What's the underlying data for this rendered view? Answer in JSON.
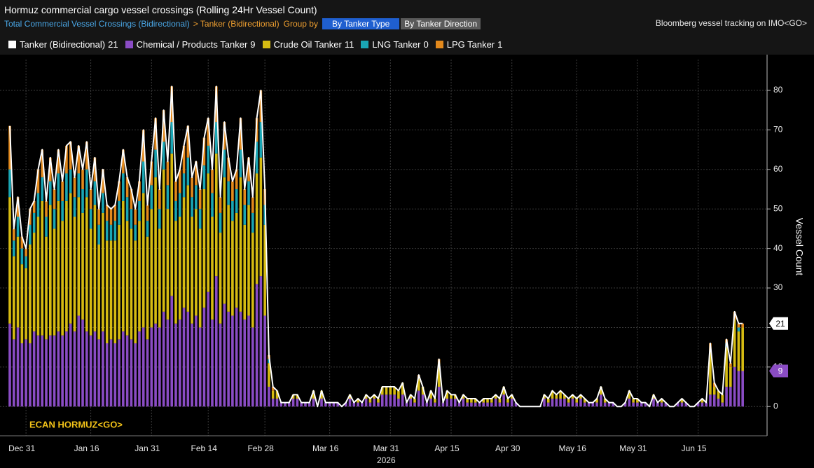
{
  "header": {
    "title": "Hormuz commercial cargo vessel crossings (Rolling 24Hr Vessel Count)",
    "breadcrumb": [
      "Total Commercial Vessel Crossings (Bidirectional)",
      "> Tanker (Bidirectional)"
    ],
    "group_by": "Group by",
    "buttons": [
      "By Tanker Type",
      "By Tanker Direction"
    ],
    "source": "Bloomberg vessel tracking on IMO<GO>"
  },
  "chart_data": {
    "type": "bar",
    "stacked": true,
    "annotation": "ECAN HORMUZ<GO>",
    "ylabel": "Vessel Count",
    "x_year": "2026",
    "ylim": [
      -7.4,
      87.8
    ],
    "yticks": [
      0,
      10,
      20,
      30,
      40,
      50,
      60,
      70,
      80
    ],
    "grid": true,
    "categories": [
      null,
      null,
      null,
      null,
      "Dec 31",
      null,
      null,
      null,
      null,
      null,
      null,
      null,
      null,
      null,
      null,
      null,
      null,
      null,
      null,
      null,
      "Jan 16",
      null,
      null,
      null,
      null,
      null,
      null,
      null,
      null,
      null,
      null,
      null,
      null,
      null,
      null,
      "Jan 31",
      null,
      null,
      null,
      null,
      null,
      null,
      null,
      null,
      null,
      null,
      null,
      null,
      null,
      "Feb 14",
      null,
      null,
      null,
      null,
      null,
      null,
      null,
      null,
      null,
      null,
      null,
      null,
      null,
      "Feb 28",
      null,
      null,
      null,
      null,
      null,
      null,
      null,
      null,
      null,
      null,
      null,
      null,
      null,
      null,
      null,
      "Mar 16",
      null,
      null,
      null,
      null,
      null,
      null,
      null,
      null,
      null,
      null,
      null,
      null,
      null,
      null,
      "Mar 31",
      null,
      null,
      null,
      null,
      null,
      null,
      null,
      null,
      null,
      null,
      null,
      null,
      null,
      null,
      "Apr 15",
      null,
      null,
      null,
      null,
      null,
      null,
      null,
      null,
      null,
      null,
      null,
      null,
      null,
      null,
      "Apr 30",
      null,
      null,
      null,
      null,
      null,
      null,
      null,
      null,
      null,
      null,
      null,
      null,
      null,
      null,
      null,
      "May 16",
      null,
      null,
      null,
      null,
      null,
      null,
      null,
      null,
      null,
      null,
      null,
      null,
      null,
      null,
      "May 31",
      null,
      null,
      null,
      null,
      null,
      null,
      null,
      null,
      null,
      null,
      null,
      null,
      null,
      null,
      "Jun 15",
      null,
      null,
      null,
      null,
      null,
      null,
      null,
      null,
      null,
      null,
      null
    ],
    "series": [
      {
        "name": "Tanker (Bidirectional)",
        "type": "line",
        "color": "#ffffff",
        "values": [
          71,
          45,
          53,
          43,
          40,
          50,
          52,
          60,
          65,
          52,
          63,
          55,
          65,
          57,
          66,
          67,
          58,
          66,
          60,
          67,
          55,
          63,
          50,
          60,
          51,
          50,
          51,
          57,
          65,
          58,
          55,
          50,
          57,
          70,
          51,
          62,
          73,
          55,
          75,
          62,
          81,
          57,
          60,
          66,
          71,
          58,
          62,
          55,
          68,
          73,
          60,
          81,
          53,
          72,
          63,
          57,
          60,
          73,
          55,
          63,
          53,
          73,
          80,
          55,
          13,
          5,
          4,
          1,
          1,
          1,
          3,
          3,
          1,
          1,
          1,
          4,
          0,
          4,
          1,
          1,
          1,
          1,
          0,
          1,
          3,
          1,
          2,
          1,
          3,
          2,
          3,
          2,
          5,
          5,
          5,
          5,
          4,
          6,
          1,
          3,
          2,
          8,
          5,
          1,
          4,
          2,
          12,
          1,
          4,
          3,
          3,
          1,
          3,
          2,
          2,
          2,
          1,
          2,
          2,
          2,
          3,
          2,
          5,
          2,
          3,
          1,
          0,
          0,
          0,
          0,
          0,
          0,
          3,
          2,
          4,
          3,
          4,
          3,
          2,
          3,
          2,
          3,
          2,
          1,
          1,
          2,
          5,
          2,
          1,
          1,
          0,
          0,
          1,
          4,
          2,
          2,
          1,
          1,
          0,
          3,
          1,
          2,
          1,
          0,
          0,
          1,
          2,
          1,
          0,
          0,
          1,
          2,
          1,
          16,
          6,
          4,
          3,
          17,
          11,
          24,
          21,
          21
        ]
      },
      {
        "name": "Chemical / Products Tanker",
        "color": "#8a4cc4",
        "values": [
          21,
          17,
          20,
          16,
          17,
          16,
          19,
          18,
          18,
          17,
          18,
          18,
          19,
          18,
          19,
          21,
          19,
          23,
          22,
          19,
          18,
          19,
          17,
          19,
          16,
          17,
          16,
          17,
          19,
          18,
          17,
          16,
          19,
          20,
          17,
          20,
          21,
          20,
          24,
          22,
          28,
          21,
          22,
          25,
          24,
          21,
          23,
          20,
          25,
          29,
          22,
          33,
          21,
          26,
          24,
          23,
          25,
          24,
          22,
          23,
          20,
          31,
          33,
          23,
          5,
          2,
          2,
          1,
          1,
          1,
          2,
          2,
          1,
          1,
          1,
          2,
          0,
          2,
          1,
          1,
          1,
          1,
          0,
          1,
          2,
          1,
          1,
          1,
          2,
          1,
          2,
          1,
          3,
          3,
          3,
          3,
          2,
          3,
          1,
          2,
          1,
          4,
          3,
          1,
          2,
          1,
          5,
          1,
          2,
          2,
          2,
          1,
          2,
          1,
          1,
          1,
          1,
          1,
          1,
          1,
          2,
          1,
          3,
          1,
          2,
          1,
          0,
          0,
          0,
          0,
          0,
          0,
          2,
          1,
          2,
          2,
          2,
          2,
          1,
          2,
          1,
          2,
          1,
          1,
          1,
          1,
          3,
          1,
          1,
          1,
          0,
          0,
          1,
          2,
          1,
          1,
          1,
          1,
          0,
          2,
          1,
          1,
          1,
          0,
          0,
          1,
          1,
          1,
          0,
          0,
          1,
          1,
          1,
          3,
          3,
          2,
          1,
          5,
          5,
          10,
          9,
          9
        ]
      },
      {
        "name": "Crude Oil Tanker",
        "color": "#d6bb12",
        "values": [
          32,
          21,
          23,
          20,
          18,
          25,
          25,
          30,
          34,
          26,
          33,
          27,
          33,
          29,
          33,
          33,
          29,
          30,
          27,
          34,
          27,
          32,
          24,
          30,
          26,
          25,
          26,
          29,
          33,
          29,
          28,
          26,
          28,
          34,
          26,
          30,
          37,
          25,
          36,
          28,
          36,
          26,
          26,
          28,
          32,
          27,
          27,
          25,
          30,
          30,
          26,
          31,
          23,
          32,
          27,
          24,
          24,
          34,
          24,
          28,
          24,
          28,
          30,
          23,
          6,
          2,
          2,
          0,
          0,
          0,
          1,
          1,
          0,
          0,
          0,
          2,
          0,
          2,
          0,
          0,
          0,
          0,
          0,
          0,
          1,
          0,
          1,
          0,
          1,
          1,
          1,
          1,
          2,
          2,
          2,
          2,
          2,
          3,
          0,
          1,
          1,
          3,
          2,
          0,
          2,
          1,
          6,
          0,
          2,
          1,
          1,
          0,
          1,
          1,
          1,
          1,
          0,
          1,
          1,
          1,
          1,
          1,
          2,
          1,
          1,
          0,
          0,
          0,
          0,
          0,
          0,
          0,
          1,
          1,
          2,
          1,
          2,
          1,
          1,
          1,
          1,
          1,
          1,
          0,
          0,
          1,
          2,
          1,
          0,
          0,
          0,
          0,
          0,
          2,
          1,
          1,
          0,
          0,
          0,
          1,
          0,
          1,
          0,
          0,
          0,
          0,
          1,
          0,
          0,
          0,
          0,
          1,
          0,
          11,
          2,
          2,
          2,
          10,
          5,
          12,
          10,
          11
        ]
      },
      {
        "name": "LNG Tanker",
        "color": "#1aa6b4",
        "values": [
          7,
          4,
          5,
          4,
          3,
          5,
          5,
          6,
          6,
          5,
          6,
          5,
          7,
          5,
          7,
          6,
          5,
          6,
          6,
          7,
          5,
          6,
          5,
          5,
          5,
          4,
          5,
          6,
          7,
          6,
          5,
          4,
          5,
          8,
          4,
          6,
          7,
          5,
          7,
          6,
          8,
          5,
          6,
          6,
          7,
          5,
          6,
          5,
          6,
          7,
          6,
          8,
          5,
          7,
          6,
          5,
          6,
          7,
          5,
          6,
          5,
          8,
          9,
          5,
          1,
          0,
          0,
          0,
          0,
          0,
          0,
          0,
          0,
          0,
          0,
          0,
          0,
          0,
          0,
          0,
          0,
          0,
          0,
          0,
          0,
          0,
          0,
          0,
          0,
          0,
          0,
          0,
          0,
          0,
          0,
          0,
          0,
          0,
          0,
          0,
          0,
          0,
          0,
          0,
          0,
          0,
          0,
          0,
          0,
          0,
          0,
          0,
          0,
          0,
          0,
          0,
          0,
          0,
          0,
          0,
          0,
          0,
          0,
          0,
          0,
          0,
          0,
          0,
          0,
          0,
          0,
          0,
          0,
          0,
          0,
          0,
          0,
          0,
          0,
          0,
          0,
          0,
          0,
          0,
          0,
          0,
          0,
          0,
          0,
          0,
          0,
          0,
          0,
          0,
          0,
          0,
          0,
          0,
          0,
          0,
          0,
          0,
          0,
          0,
          0,
          0,
          0,
          0,
          0,
          0,
          0,
          0,
          0,
          0,
          0,
          0,
          0,
          1,
          0,
          0,
          1,
          0
        ]
      },
      {
        "name": "LPG Tanker",
        "color": "#e3891c",
        "values": [
          11,
          3,
          5,
          3,
          2,
          4,
          3,
          6,
          7,
          4,
          6,
          5,
          6,
          5,
          7,
          7,
          5,
          7,
          5,
          7,
          5,
          6,
          4,
          6,
          4,
          4,
          4,
          5,
          6,
          5,
          5,
          4,
          5,
          8,
          4,
          6,
          8,
          5,
          8,
          6,
          9,
          5,
          6,
          7,
          8,
          5,
          6,
          5,
          7,
          7,
          6,
          9,
          4,
          7,
          6,
          5,
          5,
          8,
          4,
          6,
          4,
          6,
          8,
          4,
          1,
          1,
          0,
          0,
          0,
          0,
          0,
          0,
          0,
          0,
          0,
          0,
          0,
          0,
          0,
          0,
          0,
          0,
          0,
          0,
          0,
          0,
          0,
          0,
          0,
          0,
          0,
          0,
          0,
          0,
          0,
          0,
          0,
          0,
          0,
          0,
          0,
          1,
          0,
          0,
          0,
          0,
          1,
          0,
          0,
          0,
          0,
          0,
          0,
          0,
          0,
          0,
          0,
          0,
          0,
          0,
          0,
          0,
          0,
          0,
          0,
          0,
          0,
          0,
          0,
          0,
          0,
          0,
          0,
          0,
          0,
          0,
          0,
          0,
          0,
          0,
          0,
          0,
          0,
          0,
          0,
          0,
          0,
          0,
          0,
          0,
          0,
          0,
          0,
          0,
          0,
          0,
          0,
          0,
          0,
          0,
          0,
          0,
          0,
          0,
          0,
          0,
          0,
          0,
          0,
          0,
          0,
          0,
          0,
          2,
          1,
          0,
          0,
          1,
          1,
          2,
          1,
          1
        ]
      }
    ]
  }
}
